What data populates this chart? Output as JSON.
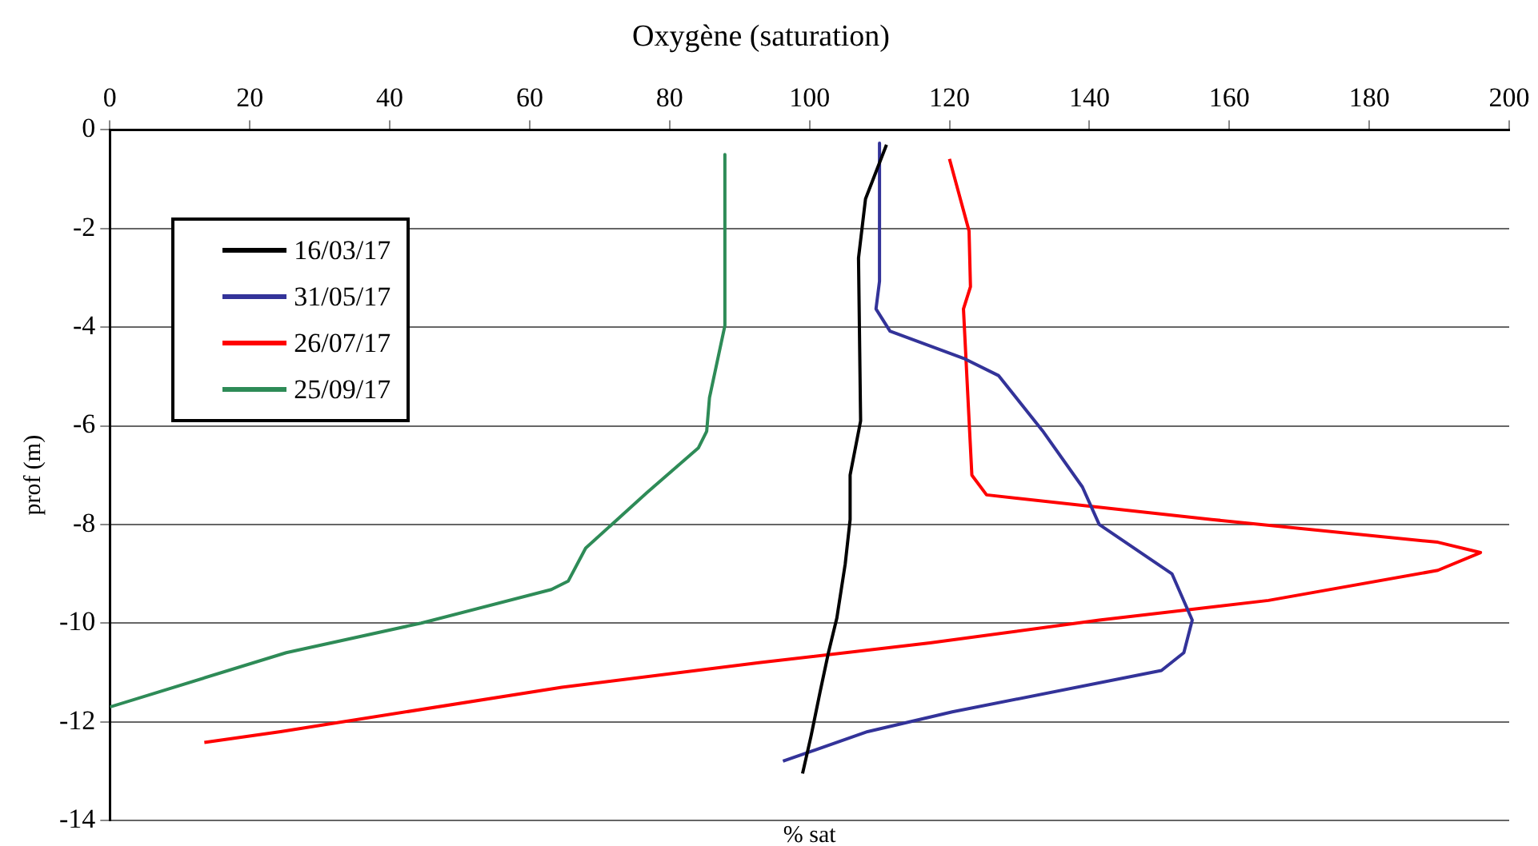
{
  "chart_data": {
    "type": "line",
    "title": "Oxygène (saturation)",
    "xlabel": "% sat",
    "ylabel": "prof (m)",
    "xlim": [
      0,
      200
    ],
    "xticks": [
      0,
      20,
      40,
      60,
      80,
      100,
      120,
      140,
      160,
      180,
      200
    ],
    "ylim": [
      -14,
      0
    ],
    "yticks": [
      0,
      -2,
      -4,
      -6,
      -8,
      -10,
      -12,
      -14
    ],
    "grid": "y",
    "legend": "top left",
    "marker": "none",
    "line_style": "solid",
    "series": [
      {
        "name": "16/03/17",
        "color": "#000000",
        "x": [
          111,
          108,
          107,
          107.3,
          105.8,
          105.8,
          105.1,
          103.9,
          102.7,
          101.5,
          100.2,
          99
        ],
        "values": [
          -0.3,
          -1.4,
          -2.6,
          -5.9,
          -7,
          -7.9,
          -8.8,
          -9.9,
          -10.6,
          -11.4,
          -12.3,
          -13.05
        ]
      },
      {
        "name": "31/05/17",
        "color": "#333399",
        "x": [
          110,
          110,
          109.5,
          111.5,
          122,
          127,
          133.3,
          139,
          141.4,
          151.8,
          154.7,
          153.5,
          150.3,
          120.4,
          108.3,
          96.2
        ],
        "values": [
          -0.27,
          -3.07,
          -3.63,
          -4.08,
          -4.63,
          -4.98,
          -6.1,
          -7.24,
          -8,
          -9,
          -9.94,
          -10.6,
          -10.96,
          -11.8,
          -12.2,
          -12.8
        ]
      },
      {
        "name": "26/07/17",
        "color": "#ff0000",
        "x": [
          120,
          122.8,
          123,
          122,
          122.8,
          123.2,
          125.3,
          157.5,
          189.8,
          195.9,
          189.8,
          165.6,
          141.4,
          117.2,
          93,
          64.6,
          24.4,
          13.5
        ],
        "values": [
          -0.59,
          -2.05,
          -3.18,
          -3.63,
          -5.88,
          -7,
          -7.4,
          -7.9,
          -8.36,
          -8.57,
          -8.93,
          -9.54,
          -9.94,
          -10.4,
          -10.8,
          -11.3,
          -12.2,
          -12.42
        ]
      },
      {
        "name": "25/09/17",
        "color": "#2e8b57",
        "x": [
          87.9,
          87.9,
          85.7,
          85.3,
          84.1,
          76.8,
          68,
          65.5,
          63.1,
          44.5,
          25.2,
          0
        ],
        "values": [
          -0.5,
          -3.97,
          -5.43,
          -6.11,
          -6.45,
          -7.35,
          -8.48,
          -9.15,
          -9.32,
          -10,
          -10.6,
          -11.7
        ]
      }
    ]
  }
}
